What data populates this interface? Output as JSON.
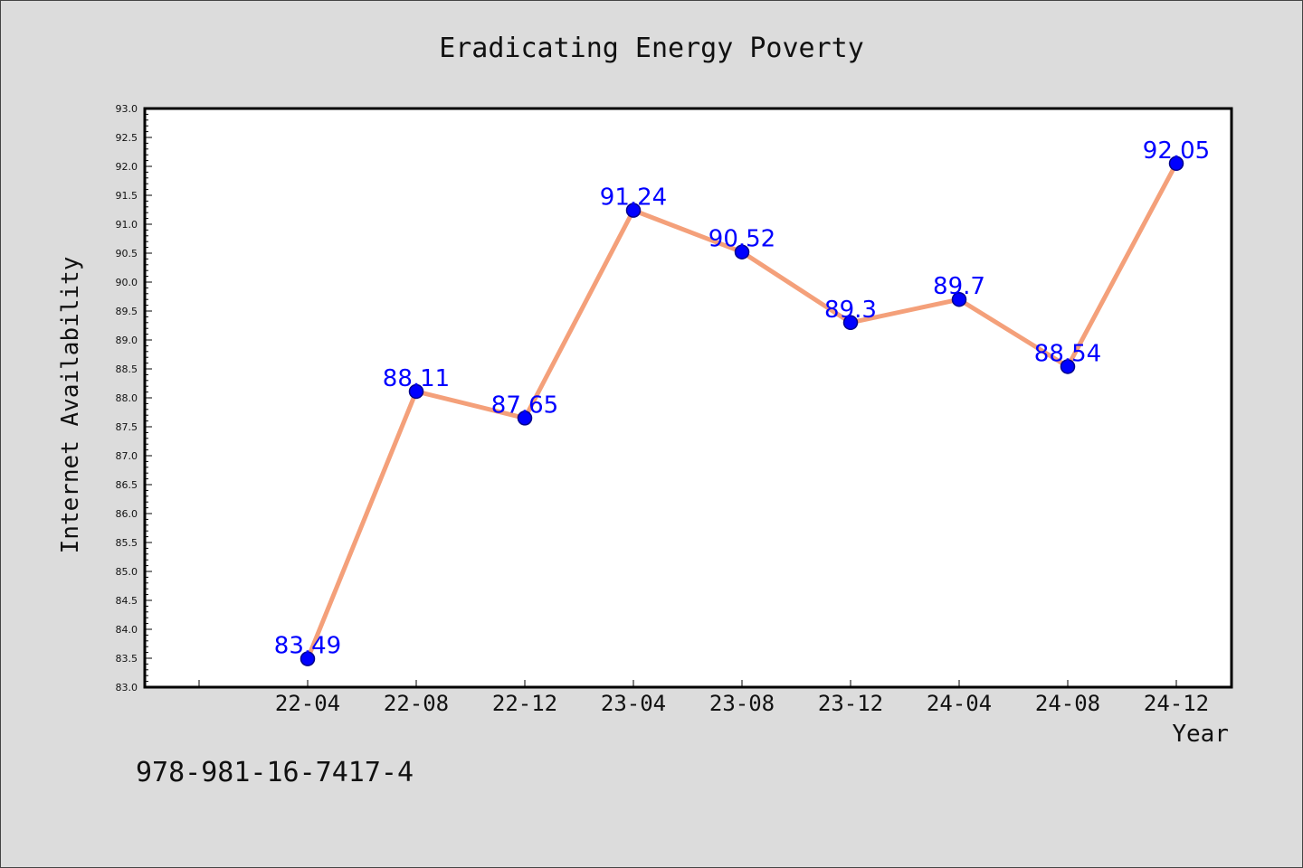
{
  "chart_data": {
    "type": "line",
    "title": "Eradicating Energy Poverty",
    "xlabel": "Year",
    "ylabel": "Internet Availability",
    "categories": [
      "22-04",
      "22-08",
      "22-12",
      "23-04",
      "23-08",
      "23-12",
      "24-04",
      "24-08",
      "24-12"
    ],
    "series": [
      {
        "values": [
          83.49,
          88.11,
          87.65,
          91.24,
          90.52,
          89.3,
          89.7,
          88.54,
          92.05
        ]
      }
    ],
    "data_labels": [
      "83.49",
      "88.11",
      "87.65",
      "91.24",
      "90.52",
      "89.3",
      "89.7",
      "88.54",
      "92.05"
    ],
    "ylim": [
      83.0,
      93.0
    ],
    "yticks": [
      "83.0",
      "83.5",
      "84.0",
      "84.5",
      "85.0",
      "85.5",
      "86.0",
      "86.5",
      "87.0",
      "87.5",
      "88.0",
      "88.5",
      "89.0",
      "89.5",
      "90.0",
      "90.5",
      "91.0",
      "91.5",
      "92.0",
      "92.5",
      "93.0"
    ],
    "grid": false,
    "legend": "none",
    "colors": {
      "line": "#f4a07a",
      "marker": "#0000ff",
      "marker_edge": "#00008b",
      "label": "#0000ff",
      "background": "#dcdcdc",
      "plot_background": "#ffffff"
    }
  },
  "footer": {
    "isbn": "978-981-16-7417-4"
  }
}
